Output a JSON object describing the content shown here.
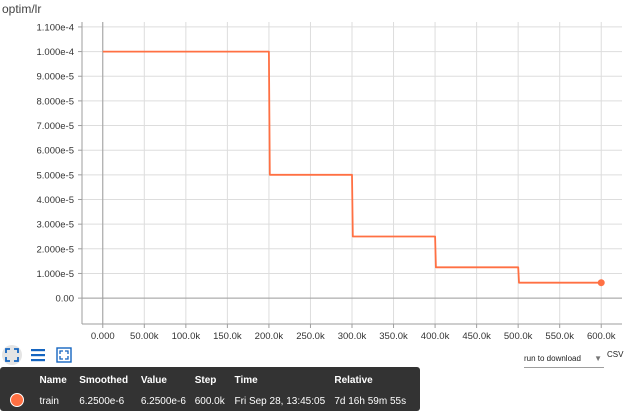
{
  "card": {
    "title": "optim/lr"
  },
  "chart_data": {
    "type": "line",
    "title": "optim/lr",
    "xlabel": "",
    "ylabel": "",
    "x_ticks": [
      "0.000",
      "50.00k",
      "100.0k",
      "150.0k",
      "200.0k",
      "250.0k",
      "300.0k",
      "350.0k",
      "400.0k",
      "450.0k",
      "500.0k",
      "550.0k",
      "600.0k"
    ],
    "x_tick_values": [
      0,
      50000,
      100000,
      150000,
      200000,
      250000,
      300000,
      350000,
      400000,
      450000,
      500000,
      550000,
      600000
    ],
    "y_ticks": [
      "0.00",
      "1.000e-5",
      "2.000e-5",
      "3.000e-5",
      "4.000e-5",
      "5.000e-5",
      "6.000e-5",
      "7.000e-5",
      "8.000e-5",
      "9.000e-5",
      "1.000e-4",
      "1.100e-4"
    ],
    "y_tick_values": [
      0,
      1e-05,
      2e-05,
      3e-05,
      4e-05,
      5e-05,
      6e-05,
      7e-05,
      8e-05,
      9e-05,
      0.0001,
      0.00011
    ],
    "xlim": [
      -25000,
      625000
    ],
    "ylim": [
      -1.05e-05,
      0.000112
    ],
    "grid": true,
    "series": [
      {
        "name": "train",
        "color": "#ff7043",
        "x": [
          0,
          200000,
          201000,
          300000,
          301000,
          400000,
          401000,
          500000,
          501000,
          600000
        ],
        "y": [
          0.0001,
          0.0001,
          5e-05,
          5e-05,
          2.5e-05,
          2.5e-05,
          1.25e-05,
          1.25e-05,
          6.25e-06,
          6.25e-06
        ]
      }
    ]
  },
  "controls": {
    "download_select": "run to download",
    "csv_label": "CSV"
  },
  "tooltip": {
    "headers": {
      "name": "Name",
      "smoothed": "Smoothed",
      "value": "Value",
      "step": "Step",
      "time": "Time",
      "relative": "Relative"
    },
    "row": {
      "color": "#ff7043",
      "name": "train",
      "smoothed": "6.2500e-6",
      "value": "6.2500e-6",
      "step": "600.0k",
      "time": "Fri Sep 28, 13:45:05",
      "relative": "7d 16h 59m 55s"
    }
  },
  "icons": {
    "fit": "fit-domain-icon",
    "log": "log-scale-icon",
    "expand": "expand-icon"
  }
}
